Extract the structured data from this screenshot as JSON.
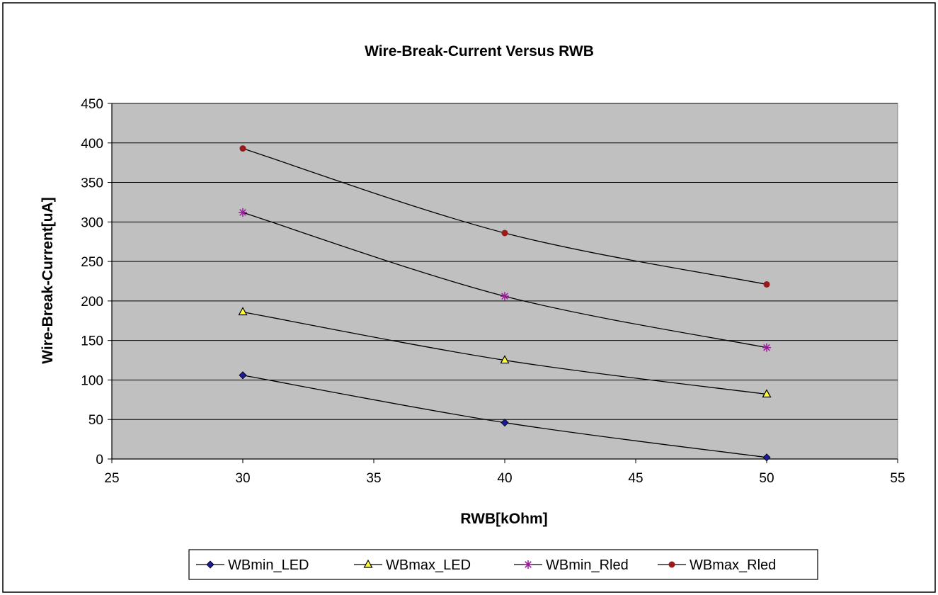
{
  "chart_data": {
    "type": "line",
    "title": "Wire-Break-Current Versus RWB",
    "xlabel": "RWB[kOhm]",
    "ylabel": "Wire-Break-Current[uA]",
    "xlim": [
      25,
      55
    ],
    "ylim": [
      0,
      450
    ],
    "xticks": [
      25,
      30,
      35,
      40,
      45,
      50,
      55
    ],
    "yticks": [
      0,
      50,
      100,
      150,
      200,
      250,
      300,
      350,
      400,
      450
    ],
    "grid": "horizontal",
    "legend_position": "bottom",
    "x": [
      30,
      40,
      50
    ],
    "series": [
      {
        "name": "WBmin_LED",
        "values": [
          106,
          46,
          2
        ],
        "marker": "diamond",
        "color": "#1a1a9a"
      },
      {
        "name": "WBmax_LED",
        "values": [
          186,
          125,
          82
        ],
        "marker": "triangle",
        "color": "#ffff33"
      },
      {
        "name": "WBmin_Rled",
        "values": [
          312,
          206,
          141
        ],
        "marker": "star",
        "color": "#9a1a9a"
      },
      {
        "name": "WBmax_Rled",
        "values": [
          393,
          286,
          221
        ],
        "marker": "circle",
        "color": "#9a1a1a"
      }
    ],
    "colors": {
      "plot_background": "#c0c0c0",
      "gridline": "#000000",
      "line": "#000000"
    }
  }
}
